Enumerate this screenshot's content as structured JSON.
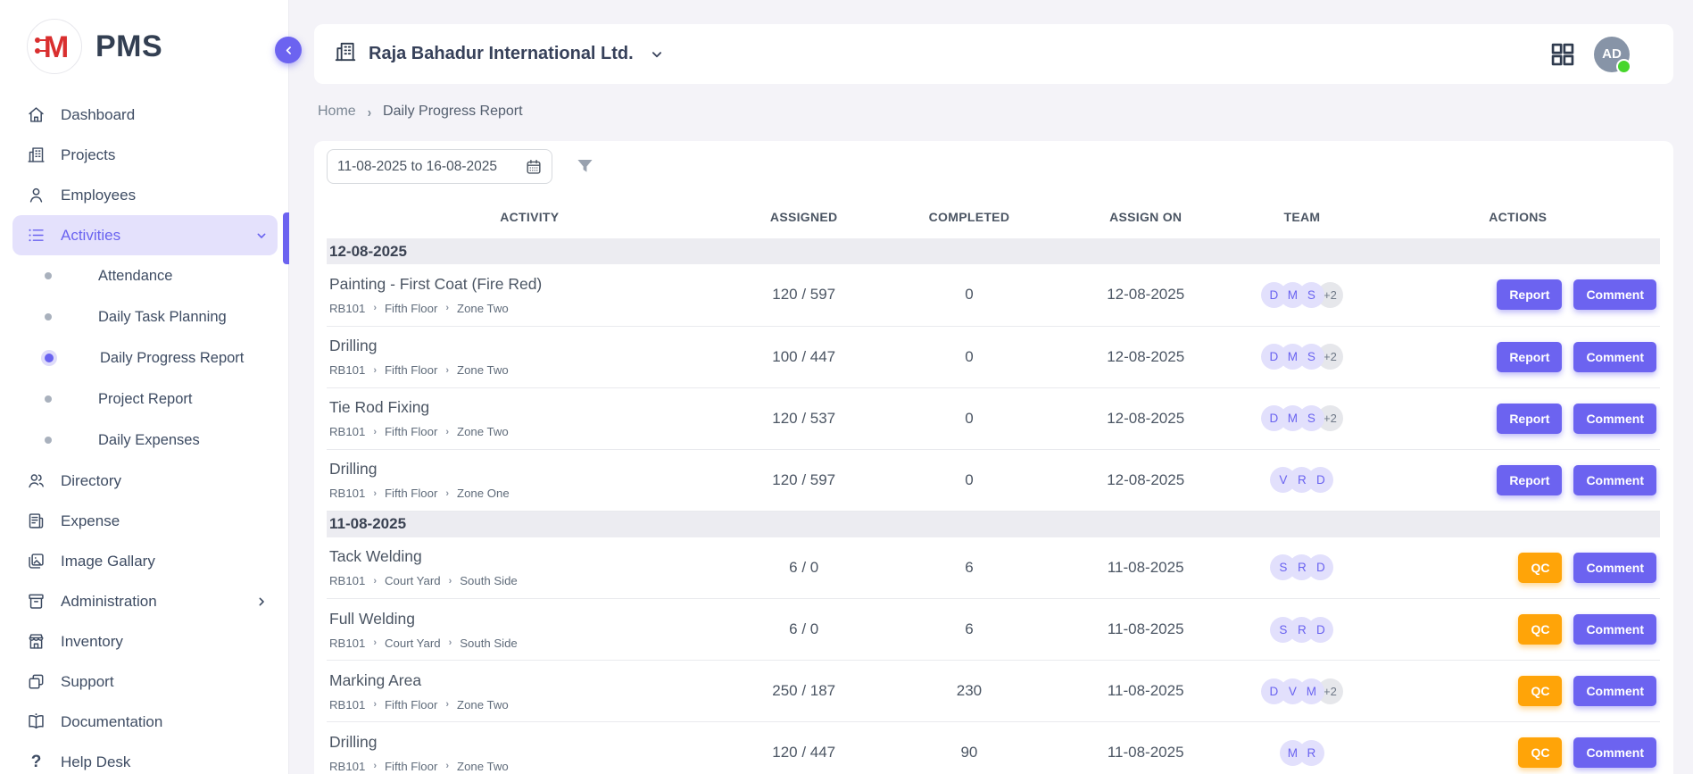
{
  "colors": {
    "accent": "#6c63f0",
    "accent_light": "#e4e1fc",
    "warning_orange": "#ffa408",
    "online_green": "#47d62c",
    "avatar_bg": "#e2e0fc",
    "logo_red": "#d92f2f"
  },
  "app": {
    "name": "PMS",
    "logo_letter": "M"
  },
  "sidebar": {
    "items": [
      {
        "icon": "home",
        "label": "Dashboard"
      },
      {
        "icon": "building",
        "label": "Projects"
      },
      {
        "icon": "person",
        "label": "Employees"
      },
      {
        "icon": "list",
        "label": "Activities",
        "active": true,
        "chevron": "down",
        "children": [
          {
            "label": "Attendance"
          },
          {
            "label": "Daily Task Planning"
          },
          {
            "label": "Daily Progress Report",
            "active": true
          },
          {
            "label": "Project Report"
          },
          {
            "label": "Daily Expenses"
          }
        ]
      },
      {
        "icon": "people",
        "label": "Directory"
      },
      {
        "icon": "receipt",
        "label": "Expense"
      },
      {
        "icon": "image",
        "label": "Image Gallary"
      },
      {
        "icon": "archive",
        "label": "Administration",
        "chevron": "right"
      },
      {
        "icon": "store",
        "label": "Inventory"
      },
      {
        "icon": "copy",
        "label": "Support"
      },
      {
        "icon": "book",
        "label": "Documentation"
      },
      {
        "icon": "question",
        "label": "Help Desk"
      }
    ]
  },
  "header": {
    "company": "Raja Bahadur International Ltd.",
    "avatar_initials": "AD"
  },
  "breadcrumb": {
    "items": [
      "Home",
      "Daily Progress Report"
    ]
  },
  "filters": {
    "date_range": "11-08-2025 to 16-08-2025"
  },
  "table": {
    "columns": [
      "ACTIVITY",
      "ASSIGNED",
      "COMPLETED",
      "ASSIGN ON",
      "TEAM",
      "ACTIONS"
    ],
    "groups": [
      {
        "date": "12-08-2025",
        "rows": [
          {
            "activity": "Painting - First Coat (Fire Red)",
            "location": [
              "RB101",
              "Fifth Floor",
              "Zone Two"
            ],
            "assigned": "120 / 597",
            "completed": "0",
            "assign_on": "12-08-2025",
            "team": {
              "members": [
                "D",
                "M",
                "S"
              ],
              "more": "+2"
            },
            "actions": [
              {
                "label": "Report",
                "style": "primary"
              },
              {
                "label": "Comment",
                "style": "primary"
              }
            ]
          },
          {
            "activity": "Drilling",
            "location": [
              "RB101",
              "Fifth Floor",
              "Zone Two"
            ],
            "assigned": "100 / 447",
            "completed": "0",
            "assign_on": "12-08-2025",
            "team": {
              "members": [
                "D",
                "M",
                "S"
              ],
              "more": "+2"
            },
            "actions": [
              {
                "label": "Report",
                "style": "primary"
              },
              {
                "label": "Comment",
                "style": "primary"
              }
            ]
          },
          {
            "activity": "Tie Rod Fixing",
            "location": [
              "RB101",
              "Fifth Floor",
              "Zone Two"
            ],
            "assigned": "120 / 537",
            "completed": "0",
            "assign_on": "12-08-2025",
            "team": {
              "members": [
                "D",
                "M",
                "S"
              ],
              "more": "+2"
            },
            "actions": [
              {
                "label": "Report",
                "style": "primary"
              },
              {
                "label": "Comment",
                "style": "primary"
              }
            ]
          },
          {
            "activity": "Drilling",
            "location": [
              "RB101",
              "Fifth Floor",
              "Zone One"
            ],
            "assigned": "120 / 597",
            "completed": "0",
            "assign_on": "12-08-2025",
            "team": {
              "members": [
                "V",
                "R",
                "D"
              ],
              "more": null
            },
            "actions": [
              {
                "label": "Report",
                "style": "primary"
              },
              {
                "label": "Comment",
                "style": "primary"
              }
            ]
          }
        ]
      },
      {
        "date": "11-08-2025",
        "rows": [
          {
            "activity": "Tack Welding",
            "location": [
              "RB101",
              "Court Yard",
              "South Side"
            ],
            "assigned": "6 / 0",
            "completed": "6",
            "assign_on": "11-08-2025",
            "team": {
              "members": [
                "S",
                "R",
                "D"
              ],
              "more": null
            },
            "actions": [
              {
                "label": "QC",
                "style": "warning"
              },
              {
                "label": "Comment",
                "style": "primary"
              }
            ]
          },
          {
            "activity": "Full Welding",
            "location": [
              "RB101",
              "Court Yard",
              "South Side"
            ],
            "assigned": "6 / 0",
            "completed": "6",
            "assign_on": "11-08-2025",
            "team": {
              "members": [
                "S",
                "R",
                "D"
              ],
              "more": null
            },
            "actions": [
              {
                "label": "QC",
                "style": "warning"
              },
              {
                "label": "Comment",
                "style": "primary"
              }
            ]
          },
          {
            "activity": "Marking Area",
            "location": [
              "RB101",
              "Fifth Floor",
              "Zone Two"
            ],
            "assigned": "250 / 187",
            "completed": "230",
            "assign_on": "11-08-2025",
            "team": {
              "members": [
                "D",
                "V",
                "M"
              ],
              "more": "+2"
            },
            "actions": [
              {
                "label": "QC",
                "style": "warning"
              },
              {
                "label": "Comment",
                "style": "primary"
              }
            ]
          },
          {
            "activity": "Drilling",
            "location": [
              "RB101",
              "Fifth Floor",
              "Zone Two"
            ],
            "assigned": "120 / 447",
            "completed": "90",
            "assign_on": "11-08-2025",
            "team": {
              "members": [
                "M",
                "R"
              ],
              "more": null
            },
            "actions": [
              {
                "label": "QC",
                "style": "warning"
              },
              {
                "label": "Comment",
                "style": "primary"
              }
            ]
          }
        ]
      }
    ]
  }
}
